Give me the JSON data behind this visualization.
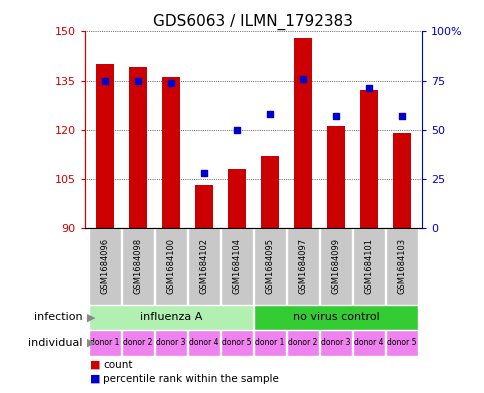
{
  "title": "GDS6063 / ILMN_1792383",
  "samples": [
    "GSM1684096",
    "GSM1684098",
    "GSM1684100",
    "GSM1684102",
    "GSM1684104",
    "GSM1684095",
    "GSM1684097",
    "GSM1684099",
    "GSM1684101",
    "GSM1684103"
  ],
  "counts": [
    140,
    139,
    136,
    103,
    108,
    112,
    148,
    121,
    132,
    119
  ],
  "percentiles": [
    75,
    75,
    74,
    28,
    50,
    58,
    76,
    57,
    71,
    57
  ],
  "y_min": 90,
  "y_max": 150,
  "y_ticks": [
    90,
    105,
    120,
    135,
    150
  ],
  "y_tick_labels": [
    "90",
    "105",
    "120",
    "135",
    "150"
  ],
  "right_y_ticks": [
    0,
    25,
    50,
    75,
    100
  ],
  "right_y_tick_labels": [
    "0",
    "25",
    "50",
    "75",
    "100%"
  ],
  "bar_color": "#cc0000",
  "dot_color": "#0000cc",
  "infection_groups": [
    {
      "label": "influenza A",
      "start": 0,
      "end": 5,
      "color": "#b2f0b2"
    },
    {
      "label": "no virus control",
      "start": 5,
      "end": 10,
      "color": "#33cc33"
    }
  ],
  "individual_labels": [
    "donor 1",
    "donor 2",
    "donor 3",
    "donor 4",
    "donor 5",
    "donor 1",
    "donor 2",
    "donor 3",
    "donor 4",
    "donor 5"
  ],
  "individual_color": "#ee82ee",
  "sample_bg_color": "#c8c8c8",
  "legend_count_label": "count",
  "legend_percentile_label": "percentile rank within the sample",
  "infection_label": "infection",
  "individual_label": "individual",
  "title_fontsize": 11,
  "tick_fontsize": 8,
  "label_fontsize": 8
}
